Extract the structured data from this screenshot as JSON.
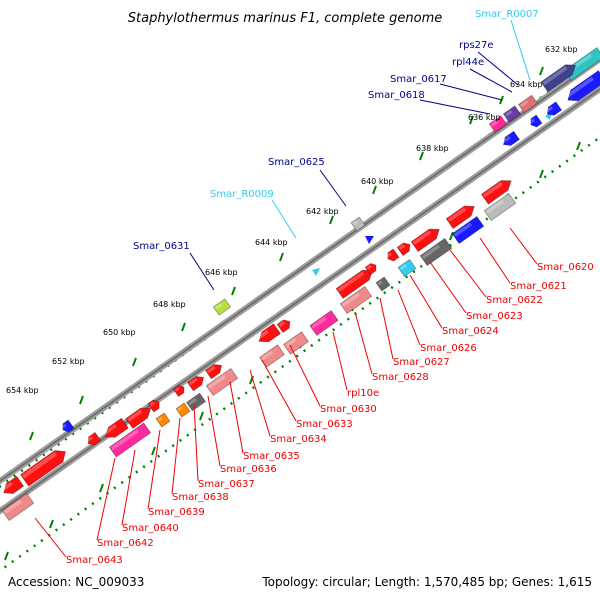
{
  "title": "Staphylothermus marinus F1, complete genome",
  "footer": {
    "accession": "Accession: NC_009033",
    "topology": "Topology: circular; Length: 1,570,485 bp; Genes: 1,615"
  },
  "colors": {
    "forward_gene": "#ff0000",
    "reverse_gene": "#ff0000",
    "label_forward": "#00008b",
    "label_rna": "#33ccee",
    "label_reverse": "#ee0000",
    "backbone": "#808080",
    "ticks": "#008000"
  },
  "kbp_ticks": [
    "632 kbp",
    "634 kbp",
    "636 kbp",
    "638 kbp",
    "640 kbp",
    "642 kbp",
    "644 kbp",
    "646 kbp",
    "648 kbp",
    "650 kbp",
    "652 kbp",
    "654 kbp"
  ],
  "upper_labels": [
    {
      "text": "Smar_R0007",
      "kind": "rna"
    },
    {
      "text": "rps27e",
      "kind": "forward"
    },
    {
      "text": "rpl44e",
      "kind": "forward"
    },
    {
      "text": "Smar_0617",
      "kind": "forward"
    },
    {
      "text": "Smar_0618",
      "kind": "forward"
    },
    {
      "text": "Smar_0625",
      "kind": "forward"
    },
    {
      "text": "Smar_R0009",
      "kind": "rna"
    },
    {
      "text": "Smar_0631",
      "kind": "forward"
    }
  ],
  "lower_labels": [
    "Smar_0620",
    "Smar_0621",
    "Smar_0622",
    "Smar_0623",
    "Smar_0624",
    "Smar_0626",
    "Smar_0627",
    "Smar_0628",
    "rpl10e",
    "Smar_0630",
    "Smar_0633",
    "Smar_0634",
    "Smar_0635",
    "Smar_0636",
    "Smar_0637",
    "Smar_0638",
    "Smar_0639",
    "Smar_0640",
    "Smar_0642",
    "Smar_0643"
  ]
}
